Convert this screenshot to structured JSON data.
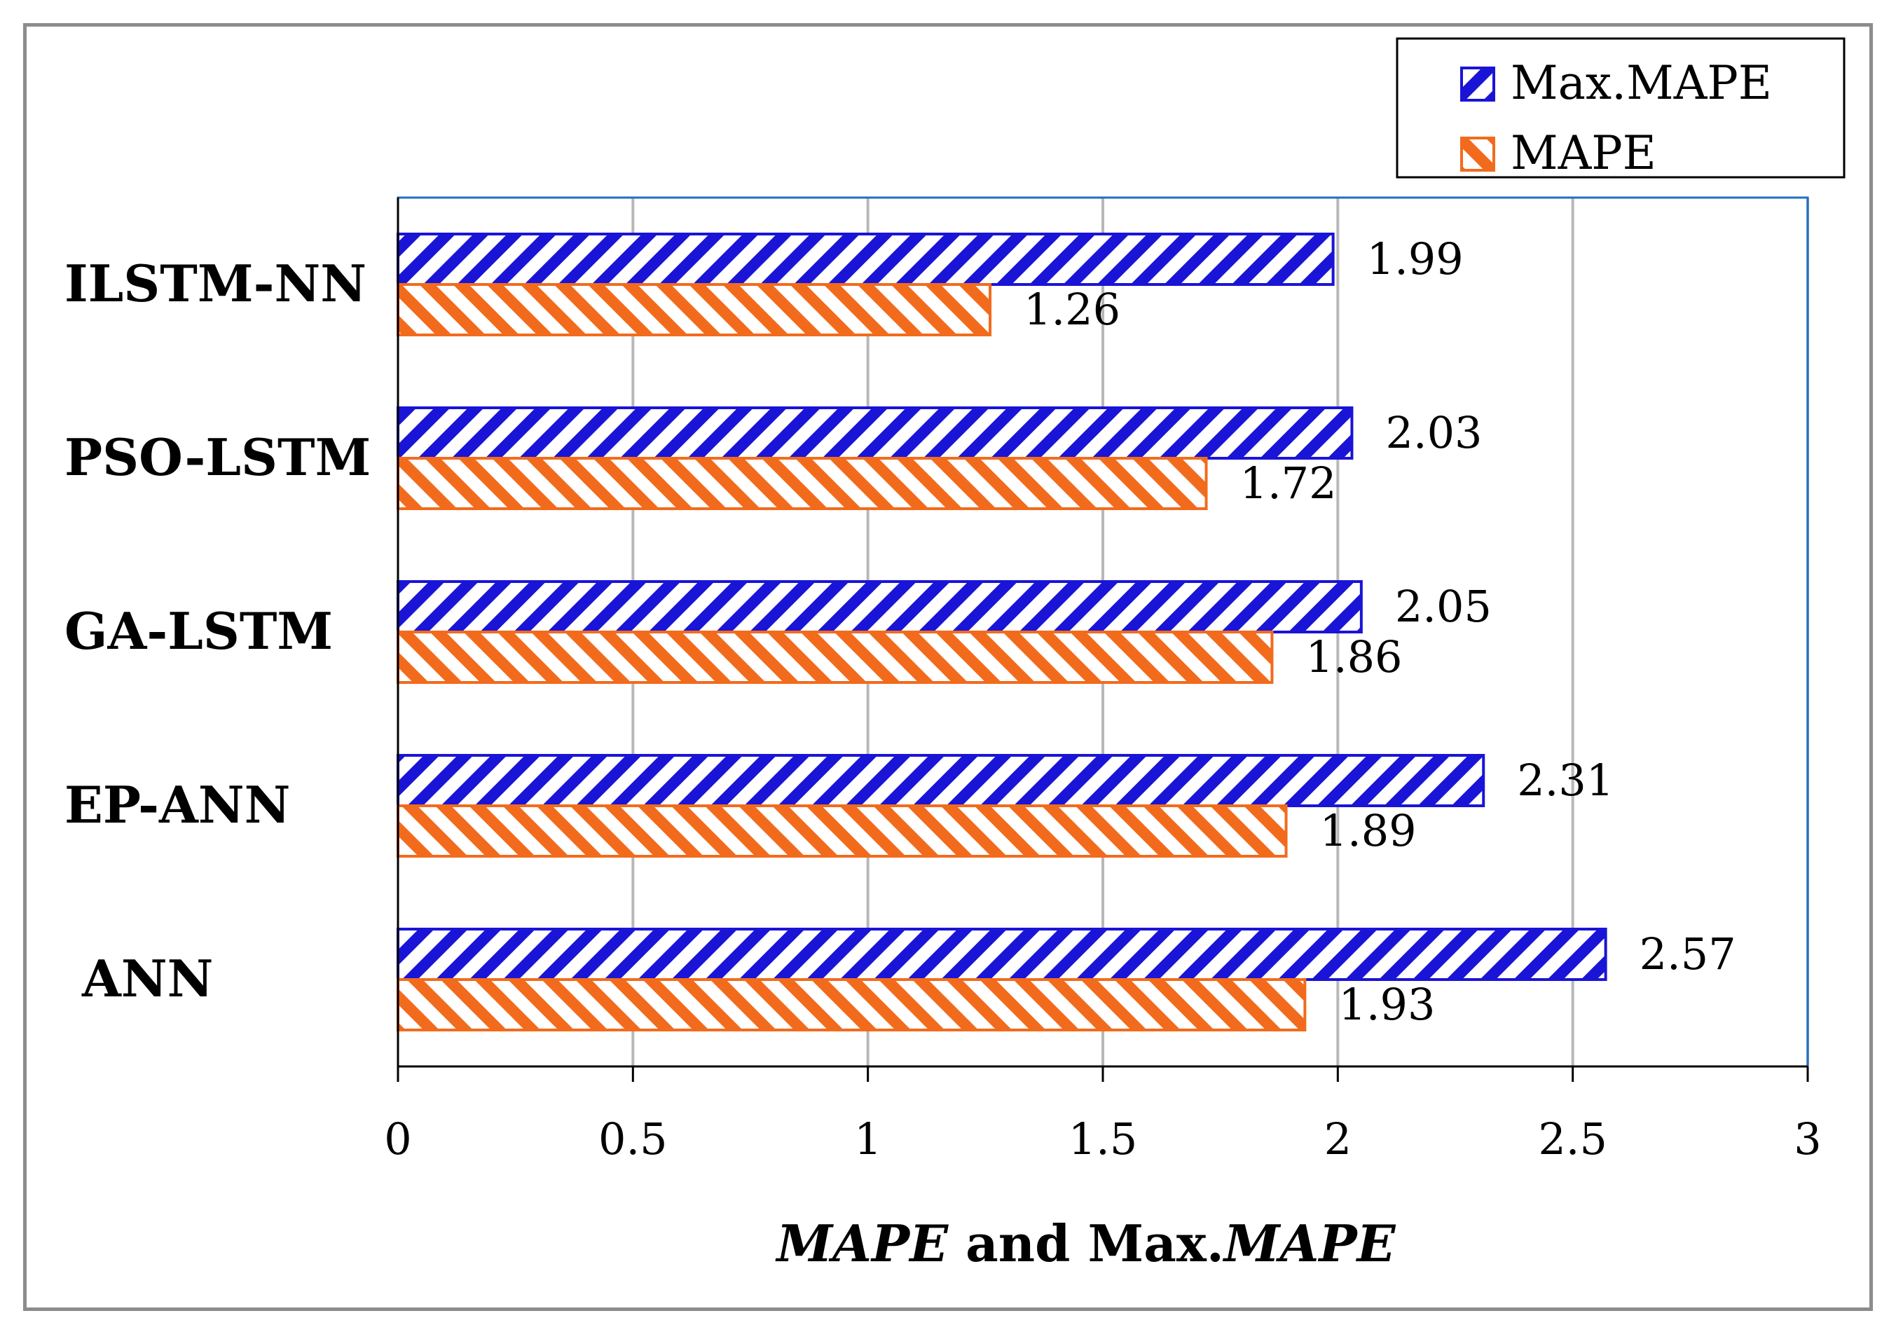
{
  "chart_data": {
    "type": "bar",
    "orientation": "horizontal",
    "categories": [
      "ILSTM-NN",
      "PSO-LSTM",
      "GA-LSTM",
      "EP-ANN",
      "ANN"
    ],
    "series": [
      {
        "name": "Max.MAPE",
        "values": [
          1.99,
          2.03,
          2.05,
          2.31,
          2.57
        ],
        "color": "#1a14d6",
        "pattern": "diagonal-up"
      },
      {
        "name": "MAPE",
        "values": [
          1.26,
          1.72,
          1.86,
          1.89,
          1.93
        ],
        "color": "#f26b1d",
        "pattern": "diagonal-down"
      }
    ],
    "data_labels": {
      "Max.MAPE": [
        "1.99",
        "2.03",
        "2.05",
        "2.31",
        "2.57"
      ],
      "MAPE": [
        "1.26",
        "1.72",
        "1.86",
        "1.89",
        "1.93"
      ]
    },
    "title": "",
    "xlabel": {
      "parts": [
        {
          "text": "MAPE",
          "italic": true
        },
        {
          "text": " and Max.",
          "italic": false
        },
        {
          "text": "MAPE",
          "italic": true
        }
      ]
    },
    "ylabel": "",
    "xlim": [
      0,
      3
    ],
    "xticks": [
      0,
      0.5,
      1,
      1.5,
      2,
      2.5,
      3
    ],
    "xtick_labels": [
      "0",
      "0.5",
      "1",
      "1.5",
      "2",
      "2.5",
      "3"
    ],
    "grid": {
      "vertical": true,
      "color": "#b8b8b8"
    },
    "legend": {
      "position": "top-right",
      "entries": [
        "Max.MAPE",
        "MAPE"
      ]
    },
    "plot_border_color": "#1f6fc6"
  }
}
